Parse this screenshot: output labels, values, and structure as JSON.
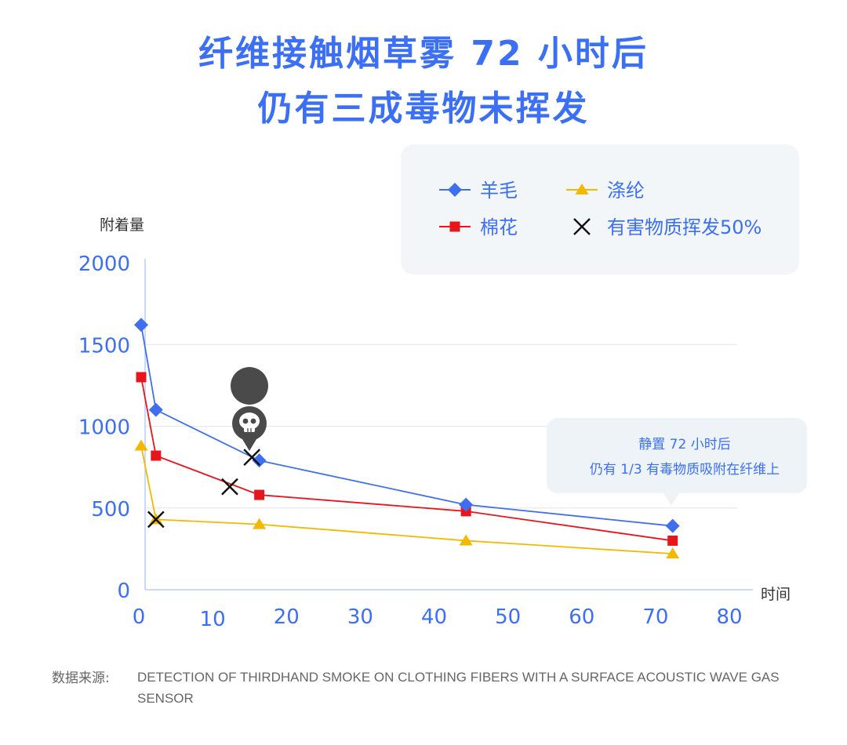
{
  "title_line1": "纤维接触烟草雾 72 小时后",
  "title_line2": "仍有三成毒物未挥发",
  "source_label": "数据来源:",
  "source_text": "DETECTION OF THIRDHAND SMOKE ON CLOTHING FIBERS WITH A SURFACE ACOUSTIC WAVE GAS SENSOR",
  "callout": {
    "line1": "静置 72 小时后",
    "line2": "仍有 1/3 有毒物质吸附在纤维上"
  },
  "colors": {
    "title": "#3b6ff5",
    "wool": "#3f6ff0",
    "cotton": "#e8151b",
    "polyester": "#f5b800",
    "marker_x": "#111111",
    "axis_text": "#3b6ff5",
    "grid": "#e6e6e6"
  },
  "chart_data": {
    "type": "line",
    "ylabel": "附着量",
    "xlabel": "时间",
    "xlim": [
      0,
      80
    ],
    "ylim": [
      0,
      2000
    ],
    "xticks": [
      0,
      10,
      20,
      30,
      40,
      50,
      60,
      70,
      80
    ],
    "yticks": [
      0,
      500,
      1000,
      1500,
      2000
    ],
    "grid": "horizontal",
    "legend_position": "top-right",
    "series": [
      {
        "name": "羊毛",
        "marker": "diamond",
        "color": "#3f6ff0",
        "points": [
          [
            0,
            1620
          ],
          [
            2,
            1100
          ],
          [
            16,
            790
          ],
          [
            44,
            520
          ],
          [
            72,
            390
          ]
        ]
      },
      {
        "name": "棉花",
        "marker": "square",
        "color": "#e8151b",
        "points": [
          [
            0,
            1300
          ],
          [
            2,
            820
          ],
          [
            16,
            580
          ],
          [
            44,
            480
          ],
          [
            72,
            300
          ]
        ]
      },
      {
        "name": "涤纶",
        "marker": "triangle",
        "color": "#f5b800",
        "points": [
          [
            0,
            880
          ],
          [
            2,
            430
          ],
          [
            16,
            400
          ],
          [
            44,
            300
          ],
          [
            72,
            220
          ]
        ]
      }
    ],
    "marker_series": {
      "name": "有害物质挥发50%",
      "marker": "x",
      "color": "#111111",
      "points": [
        [
          2,
          430
        ],
        [
          12,
          630
        ],
        [
          15,
          810
        ]
      ]
    }
  }
}
